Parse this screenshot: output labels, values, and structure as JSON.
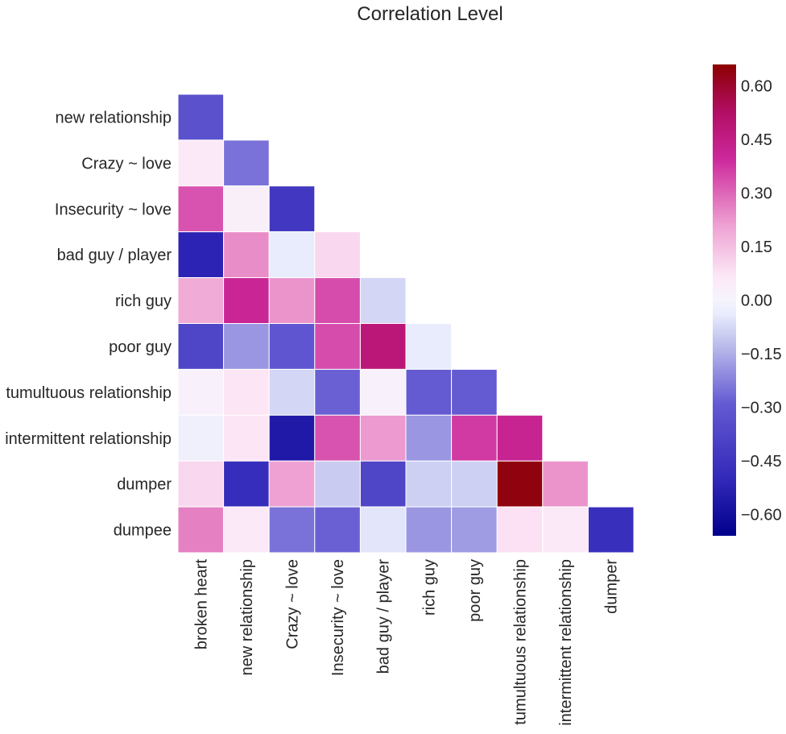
{
  "chart_data": {
    "type": "heatmap",
    "title": "Correlation Level",
    "x_labels": [
      "broken heart",
      "new relationship",
      "Crazy ~ love",
      "Insecurity ~ love",
      "bad guy / player",
      "rich guy",
      "poor guy",
      "tumultuous relationship",
      "intermittent relationship",
      "dumper"
    ],
    "y_labels": [
      "new relationship",
      "Crazy ~ love",
      "Insecurity ~ love",
      "bad guy / player",
      "rich guy",
      "poor guy",
      "tumultuous relationship",
      "intermittent relationship",
      "dumper",
      "dumpee"
    ],
    "values": [
      [
        -0.33
      ],
      [
        0.06,
        -0.25
      ],
      [
        0.33,
        0.03,
        -0.44
      ],
      [
        -0.52,
        0.24,
        -0.04,
        0.1
      ],
      [
        0.19,
        0.41,
        0.23,
        0.34,
        -0.08
      ],
      [
        -0.38,
        -0.19,
        -0.31,
        0.34,
        0.48,
        -0.04
      ],
      [
        0.02,
        0.07,
        -0.08,
        -0.28,
        0.02,
        -0.29,
        -0.29
      ],
      [
        -0.02,
        0.07,
        -0.56,
        0.33,
        0.22,
        -0.19,
        0.37,
        0.42
      ],
      [
        0.1,
        -0.48,
        0.21,
        -0.1,
        -0.38,
        -0.09,
        -0.09,
        0.64,
        0.23
      ],
      [
        0.26,
        0.06,
        -0.25,
        -0.28,
        -0.05,
        -0.19,
        -0.18,
        0.08,
        0.06,
        -0.47
      ]
    ],
    "colorscale": "seismic-like purple/magenta diverging",
    "color_range": [
      -0.66,
      0.66
    ],
    "colorbar_ticks": [
      "0.60",
      "0.45",
      "0.30",
      "0.15",
      "0.00",
      "−0.15",
      "−0.30",
      "−0.45",
      "−0.60"
    ],
    "mask": "upper-triangle",
    "grid": false
  }
}
